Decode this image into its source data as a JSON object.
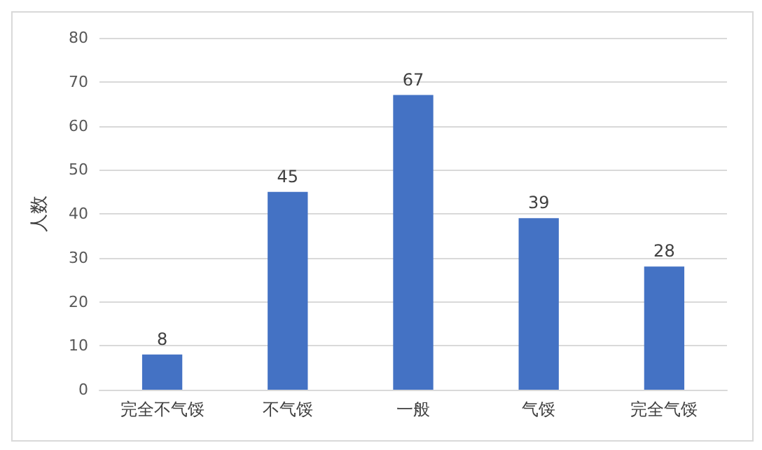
{
  "chart_data": {
    "type": "bar",
    "ylabel": "人数",
    "categories": [
      "完全不气馁",
      "不气馁",
      "一般",
      "气馁",
      "完全气馁"
    ],
    "values": [
      8,
      45,
      67,
      39,
      28
    ],
    "color": "#4472c4",
    "ylim": [
      0,
      80
    ],
    "yticks": [
      0,
      10,
      20,
      30,
      40,
      50,
      60,
      70,
      80
    ],
    "grid": "y",
    "data_labels": true
  }
}
